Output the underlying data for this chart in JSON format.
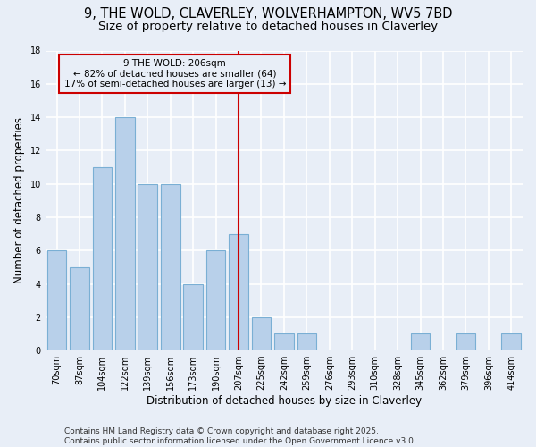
{
  "title_line1": "9, THE WOLD, CLAVERLEY, WOLVERHAMPTON, WV5 7BD",
  "title_line2": "Size of property relative to detached houses in Claverley",
  "xlabel": "Distribution of detached houses by size in Claverley",
  "ylabel": "Number of detached properties",
  "categories": [
    "70sqm",
    "87sqm",
    "104sqm",
    "122sqm",
    "139sqm",
    "156sqm",
    "173sqm",
    "190sqm",
    "207sqm",
    "225sqm",
    "242sqm",
    "259sqm",
    "276sqm",
    "293sqm",
    "310sqm",
    "328sqm",
    "345sqm",
    "362sqm",
    "379sqm",
    "396sqm",
    "414sqm"
  ],
  "values": [
    6,
    5,
    11,
    14,
    10,
    10,
    4,
    6,
    7,
    2,
    1,
    1,
    0,
    0,
    0,
    0,
    1,
    0,
    1,
    0,
    1
  ],
  "bar_color": "#b8d0ea",
  "bar_edge_color": "#7aafd4",
  "highlight_index": 8,
  "highlight_line_color": "#cc0000",
  "annotation_text": "9 THE WOLD: 206sqm\n← 82% of detached houses are smaller (64)\n17% of semi-detached houses are larger (13) →",
  "annotation_box_color": "#cc0000",
  "ylim": [
    0,
    18
  ],
  "yticks": [
    0,
    2,
    4,
    6,
    8,
    10,
    12,
    14,
    16,
    18
  ],
  "background_color": "#e8eef7",
  "grid_color": "#ffffff",
  "footer_line1": "Contains HM Land Registry data © Crown copyright and database right 2025.",
  "footer_line2": "Contains public sector information licensed under the Open Government Licence v3.0.",
  "title_fontsize": 10.5,
  "subtitle_fontsize": 9.5,
  "axis_label_fontsize": 8.5,
  "tick_fontsize": 7,
  "annotation_fontsize": 7.5,
  "footer_fontsize": 6.5
}
